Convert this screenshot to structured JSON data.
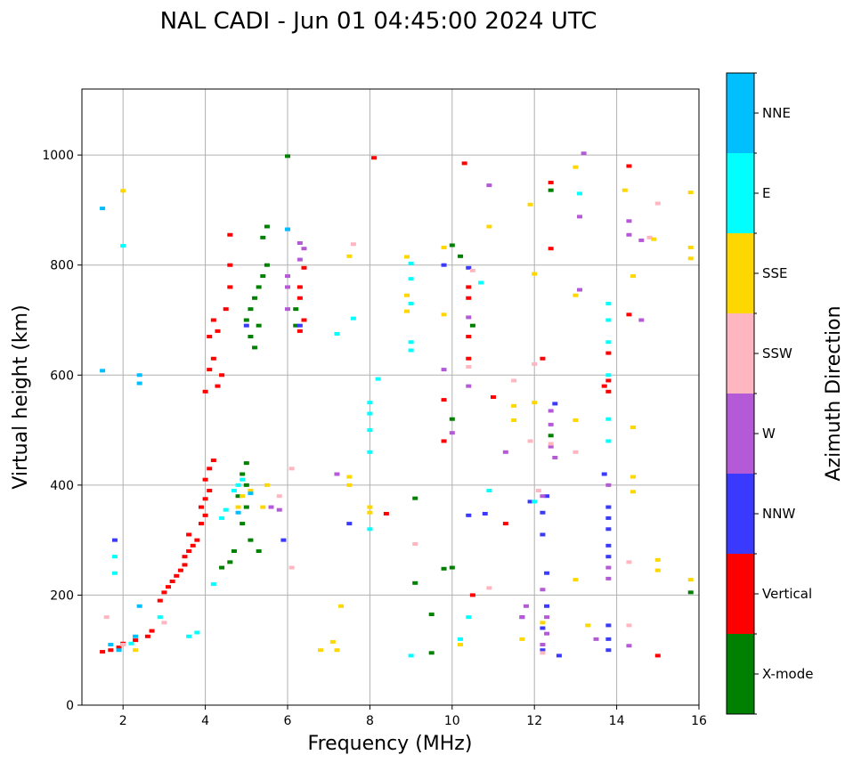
{
  "chart_data": {
    "type": "scatter",
    "title": "NAL CADI - Jun 01 04:45:00 2024 UTC",
    "xlabel": "Frequency (MHz)",
    "ylabel": "Virtual height (km)",
    "xlim": [
      1,
      16
    ],
    "ylim": [
      0,
      1120
    ],
    "xticks": [
      2,
      4,
      6,
      8,
      10,
      12,
      14,
      16
    ],
    "yticks": [
      0,
      200,
      400,
      600,
      800,
      1000
    ],
    "grid": true,
    "colorbar": {
      "label": "Azimuth Direction",
      "categories": [
        "X-mode",
        "Vertical",
        "NNW",
        "W",
        "SSW",
        "SSE",
        "E",
        "NNE"
      ],
      "colors": [
        "#008000",
        "#ff0000",
        "#3a3aff",
        "#b55ad6",
        "#ffb6c1",
        "#ffd700",
        "#00ffff",
        "#00bfff"
      ]
    },
    "series": [
      {
        "name": "X-mode",
        "points": [
          [
            6.0,
            998
          ],
          [
            5.5,
            870
          ],
          [
            5.4,
            850
          ],
          [
            5.5,
            800
          ],
          [
            5.4,
            780
          ],
          [
            5.3,
            760
          ],
          [
            5.2,
            740
          ],
          [
            5.1,
            720
          ],
          [
            5.0,
            700
          ],
          [
            5.3,
            690
          ],
          [
            5.1,
            670
          ],
          [
            5.2,
            650
          ],
          [
            5.0,
            440
          ],
          [
            4.9,
            420
          ],
          [
            5.0,
            400
          ],
          [
            4.8,
            380
          ],
          [
            5.0,
            360
          ],
          [
            4.9,
            330
          ],
          [
            5.1,
            300
          ],
          [
            4.7,
            280
          ],
          [
            4.6,
            260
          ],
          [
            4.4,
            250
          ],
          [
            5.3,
            280
          ],
          [
            9.1,
            376
          ],
          [
            9.1,
            222
          ],
          [
            9.5,
            165
          ],
          [
            9.5,
            95
          ],
          [
            10.0,
            250
          ],
          [
            10.0,
            520
          ],
          [
            10.0,
            836
          ],
          [
            10.2,
            816
          ],
          [
            10.5,
            690
          ],
          [
            12.4,
            936
          ],
          [
            12.4,
            490
          ],
          [
            15.8,
            205
          ],
          [
            6.2,
            690
          ],
          [
            6.2,
            720
          ],
          [
            9.8,
            248
          ]
        ]
      },
      {
        "name": "Vertical",
        "points": [
          [
            1.5,
            97
          ],
          [
            1.7,
            100
          ],
          [
            1.9,
            105
          ],
          [
            2.0,
            112
          ],
          [
            2.3,
            118
          ],
          [
            2.6,
            125
          ],
          [
            2.7,
            135
          ],
          [
            2.9,
            190
          ],
          [
            3.0,
            205
          ],
          [
            3.1,
            215
          ],
          [
            3.2,
            225
          ],
          [
            3.3,
            235
          ],
          [
            3.4,
            245
          ],
          [
            3.5,
            255
          ],
          [
            3.5,
            270
          ],
          [
            3.6,
            280
          ],
          [
            3.7,
            290
          ],
          [
            3.6,
            310
          ],
          [
            3.8,
            300
          ],
          [
            3.9,
            330
          ],
          [
            4.0,
            345
          ],
          [
            3.9,
            360
          ],
          [
            4.0,
            375
          ],
          [
            4.1,
            390
          ],
          [
            4.0,
            410
          ],
          [
            4.1,
            430
          ],
          [
            4.2,
            445
          ],
          [
            4.0,
            570
          ],
          [
            4.1,
            610
          ],
          [
            4.2,
            630
          ],
          [
            4.3,
            580
          ],
          [
            4.4,
            600
          ],
          [
            4.3,
            680
          ],
          [
            4.5,
            720
          ],
          [
            4.6,
            760
          ],
          [
            4.6,
            800
          ],
          [
            4.6,
            855
          ],
          [
            4.1,
            670
          ],
          [
            4.2,
            700
          ],
          [
            6.4,
            795
          ],
          [
            6.3,
            760
          ],
          [
            6.3,
            740
          ],
          [
            6.4,
            700
          ],
          [
            6.3,
            680
          ],
          [
            8.1,
            995
          ],
          [
            8.4,
            348
          ],
          [
            9.8,
            480
          ],
          [
            9.8,
            555
          ],
          [
            10.3,
            985
          ],
          [
            10.4,
            630
          ],
          [
            10.4,
            670
          ],
          [
            10.4,
            740
          ],
          [
            10.4,
            760
          ],
          [
            11.3,
            330
          ],
          [
            12.4,
            950
          ],
          [
            12.4,
            830
          ],
          [
            12.2,
            630
          ],
          [
            13.8,
            570
          ],
          [
            13.8,
            590
          ],
          [
            13.8,
            640
          ],
          [
            14.3,
            980
          ],
          [
            15.0,
            90
          ],
          [
            14.3,
            710
          ],
          [
            11.0,
            560
          ],
          [
            10.5,
            200
          ],
          [
            13.7,
            580
          ]
        ]
      },
      {
        "name": "NNW",
        "points": [
          [
            1.8,
            300
          ],
          [
            5.0,
            690
          ],
          [
            5.9,
            300
          ],
          [
            6.0,
            865
          ],
          [
            6.3,
            690
          ],
          [
            7.5,
            330
          ],
          [
            9.8,
            800
          ],
          [
            10.4,
            795
          ],
          [
            10.4,
            345
          ],
          [
            10.8,
            348
          ],
          [
            11.9,
            370
          ],
          [
            12.2,
            350
          ],
          [
            12.2,
            310
          ],
          [
            12.3,
            180
          ],
          [
            12.2,
            140
          ],
          [
            12.2,
            100
          ],
          [
            12.3,
            240
          ],
          [
            12.3,
            380
          ],
          [
            12.5,
            548
          ],
          [
            12.6,
            90
          ],
          [
            13.7,
            420
          ],
          [
            13.8,
            360
          ],
          [
            13.8,
            340
          ],
          [
            13.8,
            320
          ],
          [
            13.8,
            290
          ],
          [
            13.8,
            270
          ],
          [
            13.8,
            145
          ],
          [
            13.8,
            120
          ],
          [
            13.8,
            100
          ],
          [
            11.7,
            160
          ]
        ]
      },
      {
        "name": "W",
        "points": [
          [
            5.6,
            360
          ],
          [
            5.8,
            355
          ],
          [
            6.0,
            780
          ],
          [
            6.0,
            760
          ],
          [
            6.0,
            720
          ],
          [
            6.3,
            840
          ],
          [
            6.4,
            830
          ],
          [
            6.3,
            810
          ],
          [
            7.2,
            420
          ],
          [
            9.8,
            610
          ],
          [
            10.0,
            495
          ],
          [
            10.4,
            580
          ],
          [
            10.4,
            705
          ],
          [
            10.9,
            945
          ],
          [
            11.3,
            460
          ],
          [
            11.7,
            160
          ],
          [
            12.2,
            380
          ],
          [
            12.4,
            535
          ],
          [
            12.4,
            510
          ],
          [
            12.4,
            470
          ],
          [
            12.5,
            450
          ],
          [
            13.1,
            888
          ],
          [
            13.1,
            755
          ],
          [
            13.2,
            1003
          ],
          [
            13.5,
            120
          ],
          [
            13.8,
            400
          ],
          [
            13.8,
            250
          ],
          [
            13.8,
            230
          ],
          [
            14.3,
            880
          ],
          [
            14.3,
            855
          ],
          [
            14.6,
            845
          ],
          [
            14.6,
            700
          ],
          [
            14.3,
            108
          ],
          [
            11.8,
            180
          ],
          [
            12.2,
            210
          ],
          [
            12.3,
            160
          ],
          [
            12.3,
            130
          ],
          [
            12.2,
            110
          ]
        ]
      },
      {
        "name": "SSW",
        "points": [
          [
            1.6,
            160
          ],
          [
            2.0,
            110
          ],
          [
            3.0,
            150
          ],
          [
            5.8,
            380
          ],
          [
            6.1,
            250
          ],
          [
            6.1,
            430
          ],
          [
            7.6,
            838
          ],
          [
            9.1,
            293
          ],
          [
            10.4,
            615
          ],
          [
            10.5,
            790
          ],
          [
            10.9,
            213
          ],
          [
            11.5,
            590
          ],
          [
            11.9,
            480
          ],
          [
            12.1,
            390
          ],
          [
            12.4,
            475
          ],
          [
            13.0,
            460
          ],
          [
            14.3,
            260
          ],
          [
            14.3,
            145
          ],
          [
            15.0,
            912
          ],
          [
            14.8,
            850
          ],
          [
            12.0,
            620
          ],
          [
            12.2,
            95
          ]
        ]
      },
      {
        "name": "SSE",
        "points": [
          [
            2.0,
            935
          ],
          [
            2.3,
            100
          ],
          [
            4.8,
            360
          ],
          [
            4.9,
            380
          ],
          [
            5.1,
            390
          ],
          [
            5.4,
            360
          ],
          [
            5.5,
            400
          ],
          [
            6.8,
            100
          ],
          [
            7.1,
            115
          ],
          [
            7.2,
            100
          ],
          [
            7.3,
            180
          ],
          [
            7.5,
            400
          ],
          [
            7.5,
            415
          ],
          [
            7.5,
            816
          ],
          [
            8.0,
            350
          ],
          [
            8.0,
            360
          ],
          [
            8.9,
            815
          ],
          [
            8.9,
            745
          ],
          [
            8.9,
            716
          ],
          [
            9.8,
            710
          ],
          [
            9.8,
            832
          ],
          [
            10.2,
            110
          ],
          [
            10.9,
            870
          ],
          [
            11.5,
            544
          ],
          [
            11.5,
            518
          ],
          [
            11.9,
            910
          ],
          [
            12.0,
            784
          ],
          [
            13.0,
            978
          ],
          [
            13.0,
            745
          ],
          [
            13.0,
            518
          ],
          [
            13.0,
            228
          ],
          [
            13.3,
            145
          ],
          [
            14.2,
            936
          ],
          [
            14.4,
            780
          ],
          [
            14.4,
            505
          ],
          [
            14.4,
            415
          ],
          [
            14.4,
            388
          ],
          [
            14.9,
            847
          ],
          [
            15.0,
            264
          ],
          [
            15.0,
            245
          ],
          [
            15.8,
            932
          ],
          [
            15.8,
            832
          ],
          [
            15.8,
            812
          ],
          [
            15.8,
            228
          ],
          [
            11.7,
            120
          ],
          [
            12.2,
            150
          ],
          [
            12.0,
            550
          ]
        ]
      },
      {
        "name": "E",
        "points": [
          [
            1.8,
            270
          ],
          [
            1.8,
            240
          ],
          [
            2.0,
            835
          ],
          [
            2.9,
            160
          ],
          [
            4.2,
            220
          ],
          [
            4.4,
            340
          ],
          [
            4.5,
            355
          ],
          [
            4.7,
            390
          ],
          [
            4.8,
            400
          ],
          [
            4.9,
            410
          ],
          [
            7.2,
            675
          ],
          [
            7.6,
            703
          ],
          [
            8.0,
            550
          ],
          [
            8.0,
            530
          ],
          [
            8.0,
            500
          ],
          [
            8.0,
            460
          ],
          [
            8.0,
            320
          ],
          [
            8.2,
            593
          ],
          [
            9.0,
            90
          ],
          [
            9.0,
            803
          ],
          [
            9.0,
            775
          ],
          [
            9.0,
            730
          ],
          [
            9.0,
            660
          ],
          [
            9.0,
            645
          ],
          [
            10.2,
            120
          ],
          [
            10.4,
            160
          ],
          [
            10.7,
            768
          ],
          [
            10.9,
            390
          ],
          [
            12.0,
            370
          ],
          [
            13.1,
            930
          ],
          [
            13.8,
            730
          ],
          [
            13.8,
            700
          ],
          [
            13.8,
            660
          ],
          [
            13.8,
            600
          ],
          [
            13.8,
            520
          ],
          [
            13.8,
            480
          ],
          [
            3.6,
            125
          ],
          [
            3.8,
            132
          ],
          [
            2.2,
            112
          ]
        ]
      },
      {
        "name": "NNE",
        "points": [
          [
            1.5,
            903
          ],
          [
            1.5,
            608
          ],
          [
            2.4,
            600
          ],
          [
            2.4,
            585
          ],
          [
            2.4,
            180
          ],
          [
            2.3,
            125
          ],
          [
            6.0,
            865
          ],
          [
            4.8,
            350
          ],
          [
            5.1,
            385
          ],
          [
            1.9,
            100
          ],
          [
            1.7,
            110
          ]
        ]
      }
    ]
  }
}
